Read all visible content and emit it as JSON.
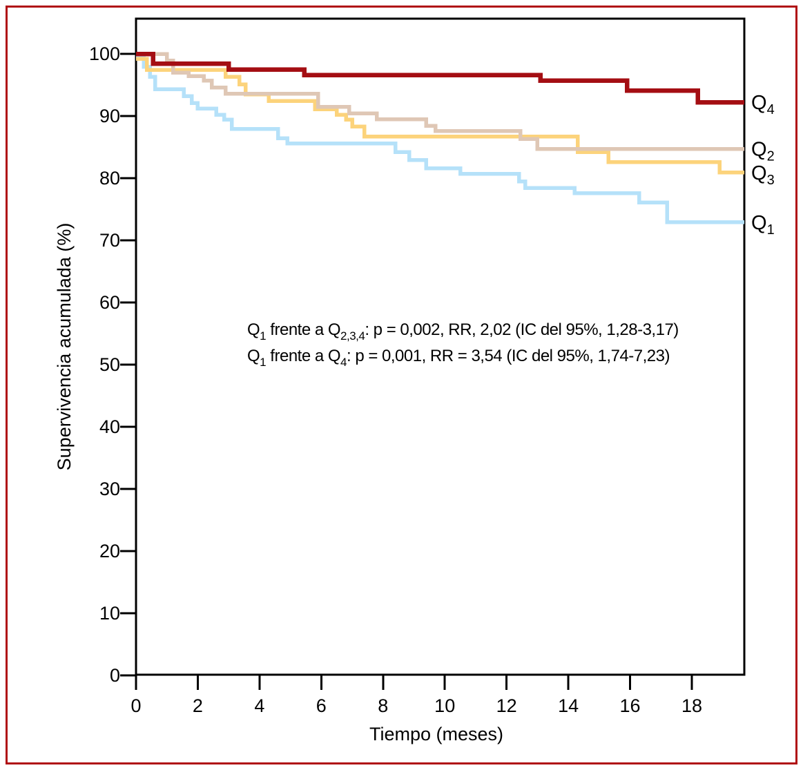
{
  "figure": {
    "border_color": "#b00d12",
    "background": "#ffffff",
    "axis_color": "#000000"
  },
  "chart_data": {
    "type": "line",
    "subtype": "kaplan-meier-step-survival",
    "title": "",
    "xlabel": "Tiempo (meses)",
    "ylabel": "Supervivencia acumulada (%)",
    "xlim": [
      0,
      19.7
    ],
    "ylim": [
      0,
      100
    ],
    "xticks": [
      0,
      2,
      4,
      6,
      8,
      10,
      12,
      14,
      16,
      18
    ],
    "yticks": [
      0,
      10,
      20,
      30,
      40,
      50,
      60,
      70,
      80,
      90,
      100
    ],
    "grid": false,
    "legend_position": "right-end-labels",
    "series": [
      {
        "name": "Q1",
        "label": {
          "text": "Q",
          "sub": "1"
        },
        "color": "#b5e1f9",
        "end_value": 72.9,
        "points": [
          [
            0,
            99.6
          ],
          [
            0.25,
            97.9
          ],
          [
            0.45,
            96.3
          ],
          [
            0.62,
            94.3
          ],
          [
            1.55,
            93.2
          ],
          [
            1.8,
            92.1
          ],
          [
            2.0,
            91.2
          ],
          [
            2.6,
            90.2
          ],
          [
            2.85,
            89.4
          ],
          [
            3.1,
            87.9
          ],
          [
            4.6,
            86.4
          ],
          [
            4.9,
            85.6
          ],
          [
            8.4,
            84.2
          ],
          [
            8.85,
            82.9
          ],
          [
            9.4,
            81.6
          ],
          [
            10.5,
            80.7
          ],
          [
            12.4,
            79.5
          ],
          [
            12.6,
            78.4
          ],
          [
            14.2,
            77.6
          ],
          [
            16.3,
            76.1
          ],
          [
            17.2,
            72.9
          ],
          [
            19.7,
            72.9
          ]
        ]
      },
      {
        "name": "Q3",
        "label": {
          "text": "Q",
          "sub": "3"
        },
        "color": "#fcd37b",
        "end_value": 80.9,
        "points": [
          [
            0,
            99.2
          ],
          [
            0.35,
            97.4
          ],
          [
            2.9,
            96.3
          ],
          [
            3.35,
            95.1
          ],
          [
            3.55,
            93.5
          ],
          [
            4.3,
            92.4
          ],
          [
            5.8,
            91.1
          ],
          [
            6.5,
            90.2
          ],
          [
            6.8,
            89.4
          ],
          [
            7.0,
            88.3
          ],
          [
            7.4,
            86.7
          ],
          [
            14.3,
            84.2
          ],
          [
            15.3,
            82.6
          ],
          [
            18.9,
            80.9
          ],
          [
            19.7,
            80.9
          ]
        ]
      },
      {
        "name": "Q2",
        "label": {
          "text": "Q",
          "sub": "2"
        },
        "color": "#dfc7b5",
        "end_value": 84.7,
        "points": [
          [
            0,
            100
          ],
          [
            1.0,
            98.9
          ],
          [
            1.2,
            97.0
          ],
          [
            1.7,
            96.4
          ],
          [
            2.2,
            95.7
          ],
          [
            2.45,
            94.6
          ],
          [
            2.9,
            93.6
          ],
          [
            5.9,
            91.5
          ],
          [
            6.9,
            90.4
          ],
          [
            7.8,
            89.5
          ],
          [
            9.4,
            88.4
          ],
          [
            9.7,
            87.6
          ],
          [
            12.45,
            86.3
          ],
          [
            13.0,
            84.7
          ],
          [
            19.7,
            84.7
          ]
        ]
      },
      {
        "name": "Q4",
        "label": {
          "text": "Q",
          "sub": "4"
        },
        "color": "#a40e13",
        "end_value": 92.2,
        "points": [
          [
            0,
            100
          ],
          [
            0.55,
            98.4
          ],
          [
            3.0,
            97.5
          ],
          [
            5.45,
            96.6
          ],
          [
            13.1,
            95.7
          ],
          [
            15.9,
            94.1
          ],
          [
            18.2,
            92.2
          ],
          [
            19.7,
            92.2
          ]
        ]
      }
    ],
    "annotations": [
      {
        "segments": [
          {
            "text": "Q"
          },
          {
            "sub": "1"
          },
          {
            "text": " frente a Q"
          },
          {
            "sub": "2,3,4"
          },
          {
            "text": ": p = 0,002, RR, 2,02 (IC del 95%, 1,28-3,17)"
          }
        ]
      },
      {
        "segments": [
          {
            "text": "Q"
          },
          {
            "sub": "1"
          },
          {
            "text": " frente a Q"
          },
          {
            "sub": "4"
          },
          {
            "text": ": p = 0,001, RR = 3,54 (IC del 95%, 1,74-7,23)"
          }
        ]
      }
    ]
  }
}
